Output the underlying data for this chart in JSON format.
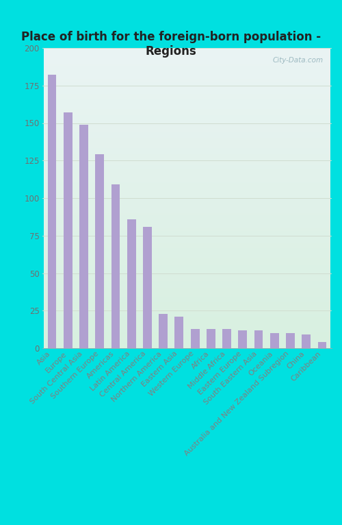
{
  "title": "Place of birth for the foreign-born population -\nRegions",
  "categories": [
    "Asia",
    "Europe",
    "South Central Asia",
    "Southern Europe",
    "Americas",
    "Latin America",
    "Central America",
    "Northern America",
    "Eastern Asia",
    "Western Europe",
    "Africa",
    "Middle Africa",
    "Eastern Europe",
    "South Eastern Asia",
    "Oceania",
    "Australia and New Zealand Subregion",
    "China",
    "Caribbean"
  ],
  "values": [
    182,
    157,
    149,
    129,
    109,
    86,
    81,
    23,
    21,
    13,
    13,
    13,
    12,
    12,
    10,
    10,
    9,
    4
  ],
  "bar_color": "#b0a0d0",
  "background_outer": "#00e0e0",
  "background_plot_top": "#eaf4f4",
  "background_plot_bottom": "#d8f0e0",
  "title_fontsize": 12,
  "tick_fontsize": 8,
  "ytick_fontsize": 8.5,
  "ylim": [
    0,
    200
  ],
  "yticks": [
    0,
    25,
    50,
    75,
    100,
    125,
    150,
    175,
    200
  ],
  "watermark": "City-Data.com",
  "watermark_color": "#90b0b8",
  "grid_color": "#d0ddd0"
}
